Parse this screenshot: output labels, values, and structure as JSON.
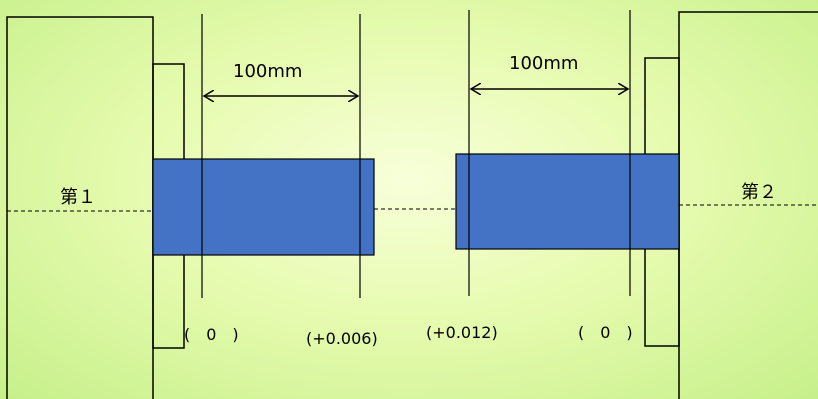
{
  "labels": {
    "machine_left": "第１",
    "machine_right": "第２",
    "dimension_left": "100mm",
    "dimension_right": "100mm",
    "reading_1": "(　0　)",
    "reading_2": "(+0.006)",
    "reading_3": "(+0.012)",
    "reading_4": "(　0　)"
  },
  "colors": {
    "shaft": "#4472c4",
    "background_center": "#f7ffd9",
    "background_edge": "#c6f08a",
    "line": "#000000"
  }
}
